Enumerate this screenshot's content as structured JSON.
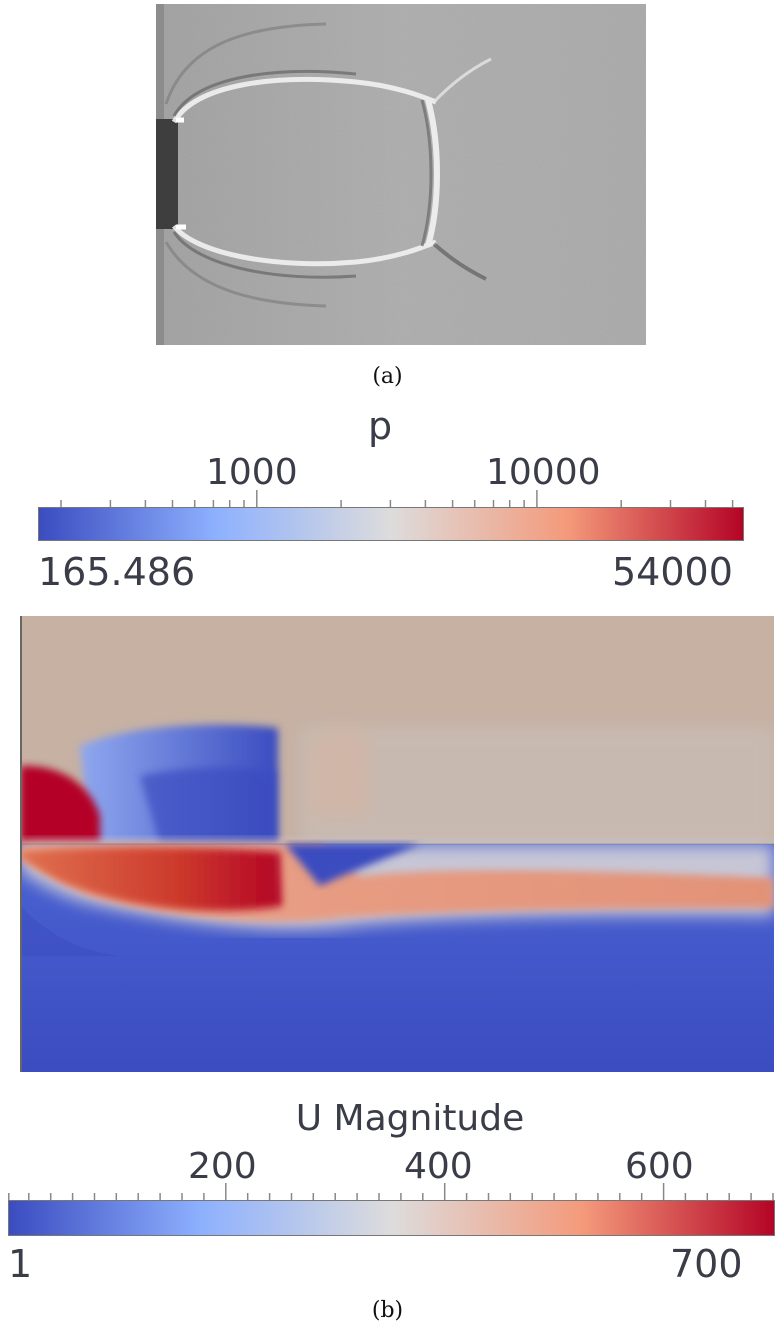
{
  "figure": {
    "panel_a_caption": "(a)",
    "panel_b_caption": "(b)"
  },
  "pressure_colorbar": {
    "title": "p",
    "min_label": "165.486",
    "max_label": "54000",
    "tick_labels": [
      "1000",
      "10000"
    ],
    "scale": "log",
    "colors": [
      "#3b4cc0",
      "#8db0fe",
      "#dddcdc",
      "#f49a7b",
      "#b40426"
    ]
  },
  "velocity_colorbar": {
    "title": "U Magnitude",
    "min_label": "1",
    "max_label": "700",
    "tick_labels": [
      "200",
      "400",
      "600"
    ],
    "scale": "linear",
    "colors": [
      "#3b4cc0",
      "#8db0fe",
      "#dddcdc",
      "#f49a7b",
      "#b40426"
    ]
  }
}
